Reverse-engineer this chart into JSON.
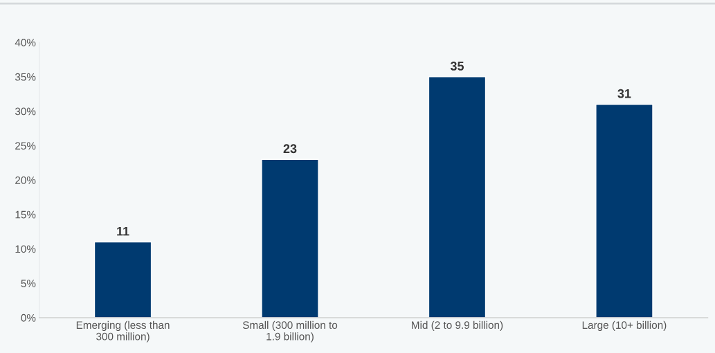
{
  "chart_data": {
    "type": "bar",
    "categories": [
      "Emerging (less than\n300 million)",
      "Small (300 million to\n1.9 billion)",
      "Mid (2 to 9.9 billion)",
      "Large (10+ billion)"
    ],
    "values": [
      11,
      23,
      35,
      31
    ],
    "color": "#003a70",
    "data_labels": true,
    "ylim": [
      0,
      40
    ],
    "yticks": [
      {
        "value": 0,
        "label": "0%"
      },
      {
        "value": 5,
        "label": "5%"
      },
      {
        "value": 10,
        "label": "10%"
      },
      {
        "value": 15,
        "label": "15%"
      },
      {
        "value": 20,
        "label": "20%"
      },
      {
        "value": 25,
        "label": "25%"
      },
      {
        "value": 30,
        "label": "30%"
      },
      {
        "value": 35,
        "label": "35%"
      },
      {
        "value": 40,
        "label": "40%"
      }
    ],
    "grid": false,
    "legend": false
  }
}
